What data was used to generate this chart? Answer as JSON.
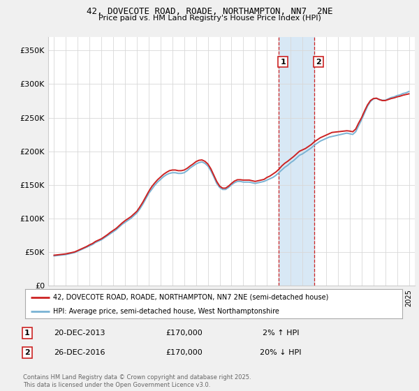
{
  "title1": "42, DOVECOTE ROAD, ROADE, NORTHAMPTON, NN7  2NE",
  "title2": "Price paid vs. HM Land Registry's House Price Index (HPI)",
  "ylabel_ticks": [
    "£0",
    "£50K",
    "£100K",
    "£150K",
    "£200K",
    "£250K",
    "£300K",
    "£350K"
  ],
  "ytick_values": [
    0,
    50000,
    100000,
    150000,
    200000,
    250000,
    300000,
    350000
  ],
  "ylim": [
    0,
    370000
  ],
  "xlim_start": 1994.5,
  "xlim_end": 2025.5,
  "hpi_color": "#7ab3d4",
  "price_color": "#cc2222",
  "bg_color": "#f0f0f0",
  "plot_bg": "#ffffff",
  "highlight_bg": "#d8e8f5",
  "sale1_x": 2013.97,
  "sale2_x": 2016.98,
  "legend_label1": "42, DOVECOTE ROAD, ROADE, NORTHAMPTON, NN7 2NE (semi-detached house)",
  "legend_label2": "HPI: Average price, semi-detached house, West Northamptonshire",
  "table_row1": [
    "1",
    "20-DEC-2013",
    "£170,000",
    "2% ↑ HPI"
  ],
  "table_row2": [
    "2",
    "26-DEC-2016",
    "£170,000",
    "20% ↓ HPI"
  ],
  "footnote": "Contains HM Land Registry data © Crown copyright and database right 2025.\nThis data is licensed under the Open Government Licence v3.0.",
  "hpi_data": {
    "years": [
      1995.0,
      1995.25,
      1995.5,
      1995.75,
      1996.0,
      1996.25,
      1996.5,
      1996.75,
      1997.0,
      1997.25,
      1997.5,
      1997.75,
      1998.0,
      1998.25,
      1998.5,
      1998.75,
      1999.0,
      1999.25,
      1999.5,
      1999.75,
      2000.0,
      2000.25,
      2000.5,
      2000.75,
      2001.0,
      2001.25,
      2001.5,
      2001.75,
      2002.0,
      2002.25,
      2002.5,
      2002.75,
      2003.0,
      2003.25,
      2003.5,
      2003.75,
      2004.0,
      2004.25,
      2004.5,
      2004.75,
      2005.0,
      2005.25,
      2005.5,
      2005.75,
      2006.0,
      2006.25,
      2006.5,
      2006.75,
      2007.0,
      2007.25,
      2007.5,
      2007.75,
      2008.0,
      2008.25,
      2008.5,
      2008.75,
      2009.0,
      2009.25,
      2009.5,
      2009.75,
      2010.0,
      2010.25,
      2010.5,
      2010.75,
      2011.0,
      2011.25,
      2011.5,
      2011.75,
      2012.0,
      2012.25,
      2012.5,
      2012.75,
      2013.0,
      2013.25,
      2013.5,
      2013.75,
      2014.0,
      2014.25,
      2014.5,
      2014.75,
      2015.0,
      2015.25,
      2015.5,
      2015.75,
      2016.0,
      2016.25,
      2016.5,
      2016.75,
      2017.0,
      2017.25,
      2017.5,
      2017.75,
      2018.0,
      2018.25,
      2018.5,
      2018.75,
      2019.0,
      2019.25,
      2019.5,
      2019.75,
      2020.0,
      2020.25,
      2020.5,
      2020.75,
      2021.0,
      2021.25,
      2021.5,
      2021.75,
      2022.0,
      2022.25,
      2022.5,
      2022.75,
      2023.0,
      2023.25,
      2023.5,
      2023.75,
      2024.0,
      2024.25,
      2024.5,
      2024.75,
      2025.0
    ],
    "values": [
      44000,
      44500,
      45000,
      45500,
      46000,
      47000,
      48000,
      49000,
      51000,
      53000,
      55000,
      57000,
      59000,
      61000,
      64000,
      66000,
      68000,
      71000,
      74000,
      77000,
      80000,
      83000,
      87000,
      91000,
      94000,
      97000,
      100000,
      104000,
      108000,
      114000,
      121000,
      129000,
      137000,
      143000,
      149000,
      154000,
      158000,
      162000,
      165000,
      167000,
      168000,
      168000,
      167000,
      167000,
      168000,
      171000,
      175000,
      178000,
      181000,
      183000,
      184000,
      182000,
      178000,
      171000,
      162000,
      152000,
      146000,
      143000,
      143000,
      146000,
      150000,
      153000,
      155000,
      155000,
      154000,
      154000,
      154000,
      153000,
      152000,
      153000,
      154000,
      155000,
      157000,
      159000,
      161000,
      164000,
      168000,
      172000,
      176000,
      179000,
      183000,
      186000,
      190000,
      194000,
      196000,
      199000,
      202000,
      205000,
      209000,
      212000,
      215000,
      217000,
      219000,
      221000,
      222000,
      223000,
      224000,
      225000,
      226000,
      227000,
      226000,
      225000,
      229000,
      238000,
      247000,
      257000,
      267000,
      274000,
      278000,
      279000,
      277000,
      276000,
      276000,
      278000,
      280000,
      281000,
      283000,
      284000,
      286000,
      287000,
      289000
    ]
  },
  "price_data": {
    "years": [
      1995.0,
      1995.25,
      1995.5,
      1995.75,
      1996.0,
      1996.25,
      1996.5,
      1996.75,
      1997.0,
      1997.25,
      1997.5,
      1997.75,
      1998.0,
      1998.25,
      1998.5,
      1998.75,
      1999.0,
      1999.25,
      1999.5,
      1999.75,
      2000.0,
      2000.25,
      2000.5,
      2000.75,
      2001.0,
      2001.25,
      2001.5,
      2001.75,
      2002.0,
      2002.25,
      2002.5,
      2002.75,
      2003.0,
      2003.25,
      2003.5,
      2003.75,
      2004.0,
      2004.25,
      2004.5,
      2004.75,
      2005.0,
      2005.25,
      2005.5,
      2005.75,
      2006.0,
      2006.25,
      2006.5,
      2006.75,
      2007.0,
      2007.25,
      2007.5,
      2007.75,
      2008.0,
      2008.25,
      2008.5,
      2008.75,
      2009.0,
      2009.25,
      2009.5,
      2009.75,
      2010.0,
      2010.25,
      2010.5,
      2010.75,
      2011.0,
      2011.25,
      2011.5,
      2011.75,
      2012.0,
      2012.25,
      2012.5,
      2012.75,
      2013.0,
      2013.25,
      2013.5,
      2013.75,
      2014.0,
      2014.25,
      2014.5,
      2014.75,
      2015.0,
      2015.25,
      2015.5,
      2015.75,
      2016.0,
      2016.25,
      2016.5,
      2016.75,
      2017.0,
      2017.25,
      2017.5,
      2017.75,
      2018.0,
      2018.25,
      2018.5,
      2018.75,
      2019.0,
      2019.25,
      2019.5,
      2019.75,
      2020.0,
      2020.25,
      2020.5,
      2020.75,
      2021.0,
      2021.25,
      2021.5,
      2021.75,
      2022.0,
      2022.25,
      2022.5,
      2022.75,
      2023.0,
      2023.25,
      2023.5,
      2023.75,
      2024.0,
      2024.25,
      2024.5,
      2024.75,
      2025.0
    ],
    "values": [
      45000,
      45500,
      46000,
      46500,
      47000,
      48000,
      49000,
      50000,
      52000,
      54000,
      56000,
      58000,
      60500,
      62500,
      65500,
      67500,
      69500,
      72500,
      75500,
      79000,
      82000,
      85000,
      89000,
      93000,
      96500,
      99500,
      102500,
      106500,
      110500,
      117000,
      124000,
      132000,
      140000,
      147000,
      152500,
      157500,
      161500,
      165500,
      168500,
      171000,
      172000,
      172000,
      171000,
      171000,
      172000,
      174500,
      178000,
      181000,
      184500,
      186500,
      187000,
      185000,
      181000,
      174000,
      164500,
      155000,
      148000,
      145000,
      145000,
      148000,
      152000,
      155500,
      157500,
      157500,
      157000,
      157000,
      157000,
      156000,
      155000,
      156000,
      157000,
      158000,
      161000,
      163000,
      166000,
      169000,
      173000,
      178000,
      182000,
      185000,
      188500,
      192000,
      196000,
      200000,
      202000,
      204000,
      207000,
      210000,
      214000,
      217000,
      220000,
      222000,
      224000,
      226000,
      228000,
      228500,
      229000,
      229500,
      230000,
      230500,
      230000,
      229000,
      233000,
      242000,
      250000,
      260000,
      269000,
      275500,
      278500,
      279000,
      277000,
      275500,
      275500,
      277000,
      278500,
      279500,
      281000,
      282000,
      283500,
      284500,
      285500
    ]
  }
}
